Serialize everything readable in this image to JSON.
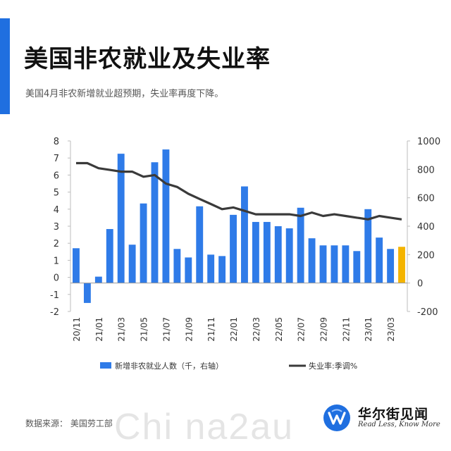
{
  "header": {
    "title": "美国非农就业及失业率",
    "subtitle": "美国4月非农新增就业超预期，失业率再度下降。"
  },
  "footer": {
    "source": "数据来源： 美国劳工部",
    "brand_name": "华尔街见闻",
    "brand_slogan": "Read Less, Know More",
    "watermark": "Chi na2au"
  },
  "colors": {
    "accent": "#1f6fe0",
    "bar": "#2f7be8",
    "bar_highlight": "#f4b400",
    "line": "#3a3a3a"
  },
  "chart_data": {
    "type": "bar",
    "categories": [
      "20/11",
      "20/12",
      "21/01",
      "21/02",
      "21/03",
      "21/04",
      "21/05",
      "21/06",
      "21/07",
      "21/08",
      "21/09",
      "21/10",
      "21/11",
      "21/12",
      "22/01",
      "22/02",
      "22/03",
      "22/04",
      "22/05",
      "22/06",
      "22/07",
      "22/08",
      "22/09",
      "22/10",
      "22/11",
      "22/12",
      "23/01",
      "23/02",
      "23/03",
      "23/04"
    ],
    "tick_labels": [
      "20/11",
      "21/01",
      "21/03",
      "21/05",
      "21/07",
      "21/09",
      "21/11",
      "22/01",
      "22/03",
      "22/05",
      "22/07",
      "22/09",
      "22/11",
      "23/01",
      "23/03"
    ],
    "series": [
      {
        "name": "新增非农就业人数（千，右轴）",
        "type": "bar",
        "axis": "right",
        "values": [
          245,
          -140,
          45,
          380,
          910,
          270,
          560,
          850,
          940,
          240,
          180,
          540,
          200,
          190,
          480,
          680,
          430,
          430,
          400,
          385,
          530,
          315,
          265,
          265,
          265,
          225,
          520,
          320,
          240,
          255
        ]
      },
      {
        "name": "失业率:季调%",
        "type": "line",
        "axis": "left",
        "values": [
          6.7,
          6.7,
          6.4,
          6.3,
          6.2,
          6.2,
          5.9,
          6.0,
          5.5,
          5.3,
          4.9,
          4.6,
          4.3,
          4.0,
          4.1,
          3.9,
          3.7,
          3.7,
          3.7,
          3.7,
          3.6,
          3.8,
          3.6,
          3.7,
          3.6,
          3.5,
          3.4,
          3.6,
          3.5,
          3.4
        ]
      }
    ],
    "highlight_index": 29,
    "y_left": {
      "min": -2,
      "max": 8,
      "ticks": [
        -2,
        -1,
        0,
        1,
        2,
        3,
        4,
        5,
        6,
        7,
        8
      ]
    },
    "y_right": {
      "min": -200,
      "max": 1000,
      "ticks": [
        -200,
        0,
        200,
        400,
        600,
        800,
        1000
      ]
    },
    "legend": {
      "position": "bottom",
      "bar_label": "新增非农就业人数（千，右轴）",
      "line_label": "失业率:季调%"
    }
  }
}
